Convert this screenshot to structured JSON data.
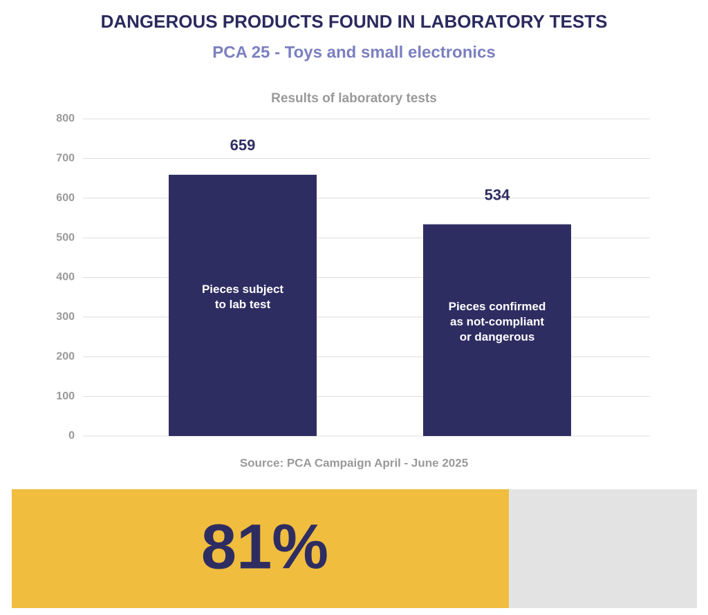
{
  "title": "DANGEROUS PRODUCTS FOUND IN LABORATORY TESTS",
  "subtitle": "PCA 25 - Toys and small electronics",
  "chart_data": {
    "type": "bar",
    "title": "Results of laboratory tests",
    "categories": [
      "Pieces subject\nto lab test",
      "Pieces confirmed\nas not-compliant\nor dangerous"
    ],
    "values": [
      659,
      534
    ],
    "color": "#2e2d62",
    "ylim": [
      0,
      800
    ],
    "yticks": [
      0,
      100,
      200,
      300,
      400,
      500,
      600,
      700,
      800
    ],
    "grid": true,
    "source": "Source: PCA Campaign April - June 2025"
  },
  "highlight": "81%"
}
